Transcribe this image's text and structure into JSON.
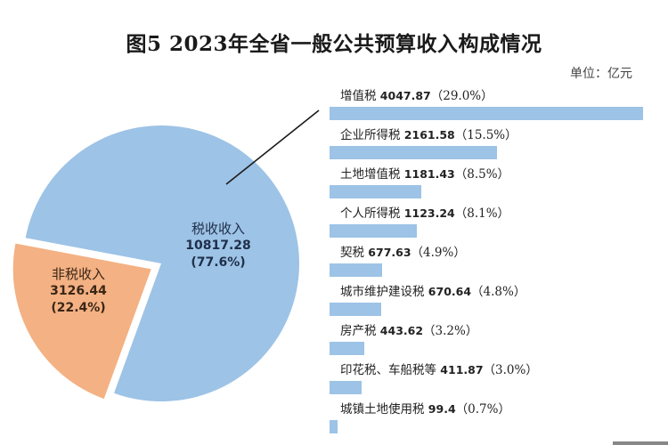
{
  "title": "图5   2023年全省一般公共预算收入构成情况",
  "unit": "单位：亿元",
  "colors": {
    "tax": "#9dc3e6",
    "nontax": "#f4b183",
    "leader_line": "#1a1a1a"
  },
  "pie": {
    "tax": {
      "name": "税收收入",
      "value": "10817.28",
      "pct": "(77.6%)"
    },
    "nontax": {
      "name": "非税收入",
      "value": "3126.44",
      "pct": "(22.4%)"
    }
  },
  "bars": [
    {
      "name": "增值税",
      "value": "4047.87",
      "pct": "（29.0%）"
    },
    {
      "name": "企业所得税",
      "value": "2161.58",
      "pct": "（15.5%）"
    },
    {
      "name": "土地增值税",
      "value": "1181.43",
      "pct": "（8.5%）"
    },
    {
      "name": "个人所得税",
      "value": "1123.24",
      "pct": "（8.1%）"
    },
    {
      "name": "契税",
      "value": "677.63",
      "pct": "（4.9%）"
    },
    {
      "name": "城市维护建设税",
      "value": "670.64",
      "pct": "（4.8%）"
    },
    {
      "name": "房产税",
      "value": "443.62",
      "pct": "（3.2%）"
    },
    {
      "name": "印花税、车船税等",
      "value": "411.87",
      "pct": "（3.0%）"
    },
    {
      "name": "城镇土地使用税",
      "value": "99.4",
      "pct": "（0.7%）"
    }
  ],
  "chart_data": [
    {
      "type": "pie",
      "title": "2023年全省一般公共预算收入构成情况",
      "unit": "亿元",
      "categories": [
        "税收收入",
        "非税收入"
      ],
      "values": [
        10817.28,
        3126.44
      ],
      "percentages": [
        77.6,
        22.4
      ],
      "exploded": [
        "非税收入"
      ],
      "colors": [
        "#9dc3e6",
        "#f4b183"
      ]
    },
    {
      "type": "bar",
      "orientation": "horizontal",
      "title": "税收收入构成",
      "unit": "亿元",
      "categories": [
        "增值税",
        "企业所得税",
        "土地增值税",
        "个人所得税",
        "契税",
        "城市维护建设税",
        "房产税",
        "印花税、车船税等",
        "城镇土地使用税"
      ],
      "values": [
        4047.87,
        2161.58,
        1181.43,
        1123.24,
        677.63,
        670.64,
        443.62,
        411.87,
        99.4
      ],
      "percentages": [
        29.0,
        15.5,
        8.5,
        8.1,
        4.9,
        4.8,
        3.2,
        3.0,
        0.7
      ],
      "grid": false,
      "legend": "none",
      "color": "#9dc3e6"
    }
  ]
}
